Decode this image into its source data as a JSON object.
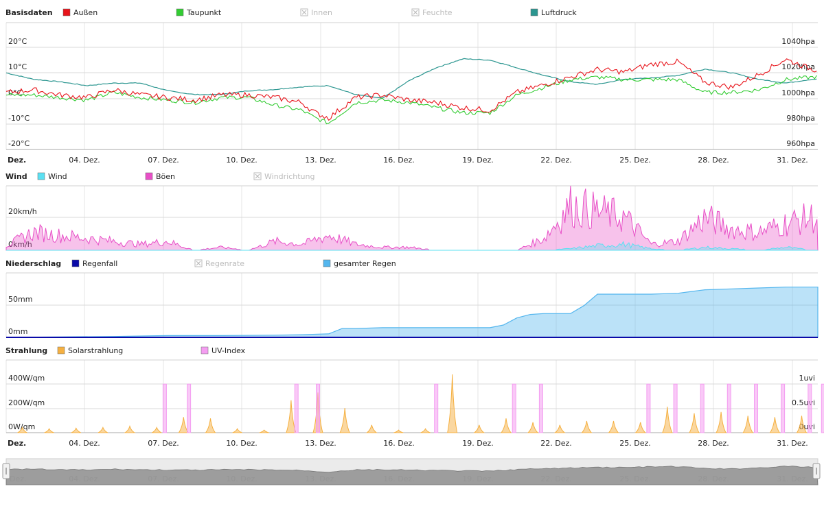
{
  "x_ticks": [
    "Dez.",
    "04. Dez.",
    "07. Dez.",
    "10. Dez.",
    "13. Dez.",
    "16. Dez.",
    "19. Dez.",
    "22. Dez.",
    "25. Dez.",
    "28. Dez.",
    "31. Dez."
  ],
  "colors": {
    "aussen": "#e8141b",
    "taupunkt": "#33cc33",
    "luftdruck": "#2b9690",
    "wind": "#5be0f2",
    "boeen": "#e84fc7",
    "regenfall": "#0a0aa8",
    "gesamt": "#54b6ee",
    "solar": "#f5b041",
    "uv": "#f49df1",
    "disabled": "#bbbbbb",
    "grid": "#e6e6e6"
  },
  "panels": [
    {
      "title": "Basisdaten",
      "legend": [
        {
          "label": "Außen",
          "color_key": "aussen",
          "enabled": true
        },
        {
          "label": "Taupunkt",
          "color_key": "taupunkt",
          "enabled": true
        },
        {
          "label": "Innen",
          "enabled": false
        },
        {
          "label": "Feuchte",
          "enabled": false
        },
        {
          "label": "Luftdruck",
          "color_key": "luftdruck",
          "enabled": true
        }
      ],
      "y_left": [
        "20°C",
        "10°C",
        "0°C",
        "-10°C",
        "-20°C"
      ],
      "y_right": [
        "1040hpa",
        "1020hpa",
        "1000hpa",
        "980hpa",
        "960hpa"
      ]
    },
    {
      "title": "Wind",
      "legend": [
        {
          "label": "Wind",
          "color_key": "wind",
          "enabled": true
        },
        {
          "label": "Böen",
          "color_key": "boeen",
          "enabled": true
        },
        {
          "label": "Windrichtung",
          "enabled": false
        }
      ],
      "y_left": [
        "20km/h",
        "0km/h"
      ],
      "y_right": []
    },
    {
      "title": "Niederschlag",
      "legend": [
        {
          "label": "Regenfall",
          "color_key": "regenfall",
          "enabled": true
        },
        {
          "label": "Regenrate",
          "enabled": false
        },
        {
          "label": "gesamter Regen",
          "color_key": "gesamt",
          "enabled": true
        }
      ],
      "y_left": [
        "50mm",
        "0mm"
      ],
      "y_right": []
    },
    {
      "title": "Strahlung",
      "legend": [
        {
          "label": "Solarstrahlung",
          "color_key": "solar",
          "enabled": true
        },
        {
          "label": "UV-Index",
          "color_key": "uv",
          "enabled": true
        }
      ],
      "y_left": [
        "400W/qm",
        "200W/qm",
        "0W/qm"
      ],
      "y_right": [
        "1uvi",
        "0.5uvi",
        "0uvi"
      ]
    }
  ],
  "chart_data": [
    {
      "type": "line",
      "title": "Basisdaten",
      "x_range": [
        "Dez. 1",
        "Dez. 31"
      ],
      "ylim_left": [
        -20,
        20
      ],
      "ylim_right": [
        960,
        1040
      ],
      "series": [
        {
          "name": "Außen",
          "axis": "left",
          "x_day": [
            1,
            2,
            3,
            4,
            5,
            6,
            7,
            8,
            9,
            10,
            11,
            12,
            12.5,
            13,
            14,
            15,
            16,
            17,
            18,
            19,
            20,
            21,
            22,
            23,
            24,
            25,
            26,
            27,
            28,
            29,
            30,
            31
          ],
          "values": [
            1,
            2,
            0,
            -1,
            2,
            0,
            -1,
            -2,
            0,
            0,
            -1,
            -3,
            -7,
            -9,
            -1,
            0,
            -2,
            -3,
            -5,
            -6,
            1,
            4,
            7,
            10,
            9,
            12,
            13,
            5,
            3,
            8,
            14,
            10
          ]
        },
        {
          "name": "Taupunkt",
          "axis": "left",
          "x_day": [
            1,
            2,
            3,
            4,
            5,
            6,
            7,
            8,
            9,
            10,
            11,
            12,
            12.5,
            13,
            14,
            15,
            16,
            17,
            18,
            19,
            20,
            21,
            22,
            23,
            24,
            25,
            26,
            27,
            28,
            29,
            30,
            31
          ],
          "values": [
            0,
            0,
            -1,
            -2,
            1,
            -1,
            -2,
            -3,
            -1,
            -1,
            -4,
            -6,
            -9,
            -11,
            -3,
            -2,
            -3,
            -5,
            -7,
            -7,
            0,
            3,
            6,
            7,
            6,
            6,
            6,
            1,
            1,
            2,
            6,
            7
          ]
        },
        {
          "name": "Luftdruck",
          "axis": "right",
          "x_day": [
            1,
            2,
            3,
            4,
            5,
            6,
            7,
            8,
            9,
            10,
            11,
            12,
            13,
            14,
            15,
            16,
            17,
            18,
            19,
            20,
            21,
            22,
            23,
            24,
            25,
            26,
            27,
            28,
            29,
            30,
            31
          ],
          "values": [
            1020,
            1015,
            1013,
            1010,
            1012,
            1012,
            1006,
            1003,
            1003,
            1006,
            1007,
            1009,
            1010,
            1003,
            1000,
            1014,
            1024,
            1031,
            1030,
            1024,
            1018,
            1013,
            1011,
            1015,
            1016,
            1018,
            1023,
            1020,
            1015,
            1012,
            1015
          ]
        }
      ]
    },
    {
      "type": "area",
      "title": "Wind",
      "ylim": [
        0,
        30
      ],
      "series": [
        {
          "name": "Wind",
          "x_day": [
            1,
            5,
            10,
            15,
            20,
            21,
            22,
            23,
            24,
            25,
            26,
            27,
            28,
            29,
            30,
            31
          ],
          "values": [
            0,
            0,
            0,
            0,
            0,
            0,
            1,
            3,
            4,
            1,
            0,
            2,
            1,
            0,
            2,
            0
          ]
        },
        {
          "name": "Böen",
          "x_day": [
            1,
            2,
            3,
            4,
            5,
            6,
            7,
            8,
            9,
            10,
            11,
            12,
            13,
            14,
            15,
            16,
            17,
            18,
            19,
            20,
            21,
            22,
            23,
            24,
            25,
            26,
            27,
            28,
            29,
            30,
            31
          ],
          "values": [
            3,
            12,
            10,
            8,
            6,
            4,
            6,
            0,
            2,
            0,
            6,
            4,
            10,
            4,
            2,
            2,
            0,
            0,
            0,
            0,
            8,
            30,
            26,
            22,
            4,
            6,
            22,
            14,
            12,
            18,
            22
          ]
        }
      ]
    },
    {
      "type": "area",
      "title": "Niederschlag",
      "ylim": [
        0,
        70
      ],
      "series": [
        {
          "name": "gesamter Regen",
          "x_day": [
            1,
            3,
            5,
            7,
            9,
            11,
            12,
            13,
            13.5,
            14,
            15,
            16,
            17,
            18,
            19,
            19.5,
            20,
            20.5,
            21,
            22,
            22.5,
            23,
            24,
            25,
            26,
            26.5,
            27,
            28,
            29,
            30,
            31
          ],
          "values": [
            0,
            0.5,
            1,
            2,
            2,
            2.5,
            3,
            4,
            10,
            10,
            11,
            11,
            11,
            11,
            11,
            14,
            22,
            26,
            27,
            27,
            36,
            49,
            49,
            49,
            50,
            52,
            54,
            55,
            56,
            57,
            57
          ]
        },
        {
          "name": "Regenfall",
          "x_day": [
            1,
            13.5,
            20,
            22.5,
            26,
            31
          ],
          "values": [
            0,
            1,
            0,
            1,
            1,
            0
          ]
        }
      ]
    },
    {
      "type": "area",
      "title": "Strahlung",
      "ylim_left": [
        0,
        450
      ],
      "ylim_right": [
        0,
        1.2
      ],
      "series": [
        {
          "name": "Solarstrahlung",
          "axis": "left",
          "x_day": [
            1,
            2,
            3,
            4,
            5,
            6,
            7,
            8,
            9,
            10,
            11,
            12,
            13,
            14,
            15,
            16,
            17,
            18,
            19,
            20,
            21,
            22,
            23,
            24,
            25,
            26,
            27,
            28,
            29,
            30,
            31
          ],
          "values": [
            40,
            30,
            35,
            40,
            50,
            40,
            120,
            110,
            30,
            20,
            250,
            310,
            190,
            60,
            20,
            30,
            450,
            60,
            110,
            80,
            60,
            90,
            90,
            80,
            200,
            150,
            160,
            130,
            120,
            130,
            160
          ]
        },
        {
          "name": "UV-Index",
          "axis": "right",
          "x_day": [
            6.9,
            7.8,
            11.8,
            12.6,
            17.0,
            19.9,
            20.9,
            24.9,
            25.9,
            26.9,
            27.9,
            28.9,
            29.9,
            30.9,
            31.4
          ],
          "values": [
            1,
            1,
            1,
            1,
            1,
            1,
            1,
            1,
            1,
            1,
            1,
            1,
            1,
            1,
            1
          ]
        }
      ]
    }
  ]
}
